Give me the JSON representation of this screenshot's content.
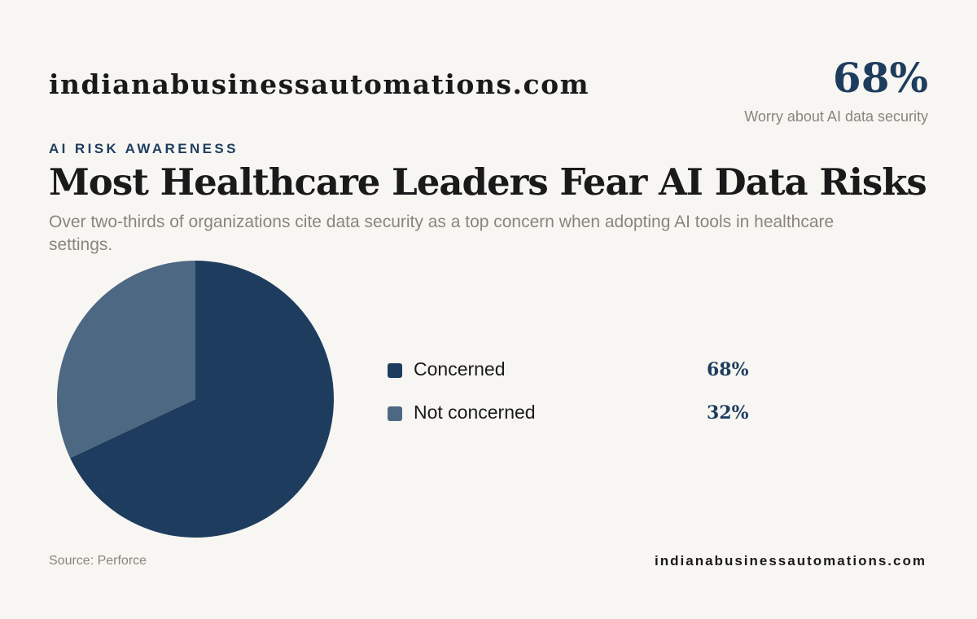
{
  "header": {
    "brand": "indianabusinessautomations.com",
    "stat_value": "68%",
    "stat_caption": "Worry about AI data security"
  },
  "eyebrow": "AI RISK AWARENESS",
  "title": "Most Healthcare Leaders Fear AI Data Risks",
  "subtitle": "Over two-thirds of organizations cite data security as a top concern when adopting AI tools in healthcare settings.",
  "chart_data": {
    "type": "pie",
    "categories": [
      "Concerned",
      "Not concerned"
    ],
    "values": [
      68,
      32
    ],
    "value_labels": [
      "68%",
      "32%"
    ],
    "colors": [
      "#1e3d5e",
      "#4d6883"
    ],
    "legend_position": "right"
  },
  "footer": {
    "source": "Source: Perforce",
    "brand": "indianabusinessautomations.com"
  }
}
